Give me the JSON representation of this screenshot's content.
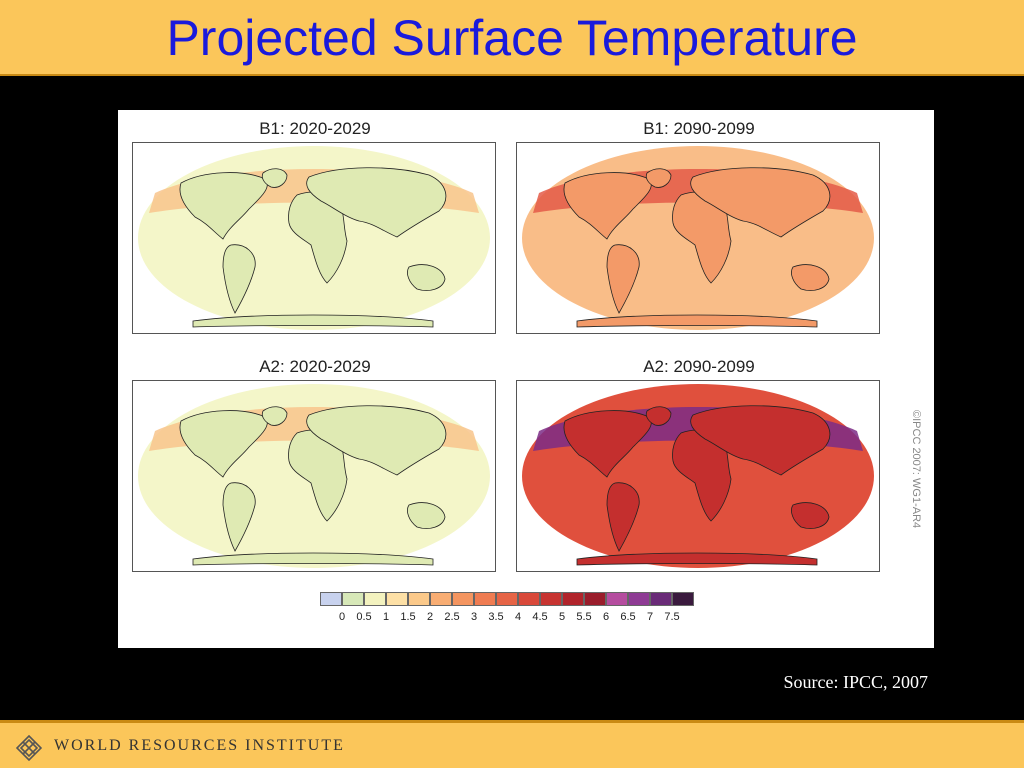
{
  "title": "Projected Surface Temperature",
  "panels": [
    {
      "label": "B1: 2020-2029",
      "scenario": "B1",
      "period": "2020-2029",
      "intensity": 0
    },
    {
      "label": "B1: 2090-2099",
      "scenario": "B1",
      "period": "2090-2099",
      "intensity": 1
    },
    {
      "label": "A2: 2020-2029",
      "scenario": "A2",
      "period": "2020-2029",
      "intensity": 0
    },
    {
      "label": "A2: 2090-2099",
      "scenario": "A2",
      "period": "2090-2099",
      "intensity": 2
    }
  ],
  "colorbar": {
    "ticks": [
      "0",
      "0.5",
      "1",
      "1.5",
      "2",
      "2.5",
      "3",
      "3.5",
      "4",
      "4.5",
      "5",
      "5.5",
      "6",
      "6.5",
      "7",
      "7.5"
    ],
    "colors": [
      "#c8d2ee",
      "#d7e8b8",
      "#f3f2bf",
      "#fde0a6",
      "#fbc98a",
      "#f8ad73",
      "#f49560",
      "#ef7c52",
      "#e66446",
      "#d9493a",
      "#c73431",
      "#b1242b",
      "#9a1d2b",
      "#b54d9f",
      "#8e3b94",
      "#6a2b78",
      "#3a1a3e"
    ]
  },
  "copyright": "©IPCC 2007: WG1-AR4",
  "source": "Source: IPCC, 2007",
  "footer": {
    "org": "WORLD RESOURCES INSTITUTE"
  },
  "map_palette": {
    "cool": [
      "#f4f6c9",
      "#dfeab3",
      "#f8c48c"
    ],
    "warm": [
      "#f9bd88",
      "#f39a68",
      "#e45a48"
    ],
    "hot": [
      "#e0503d",
      "#c42f2e",
      "#7b2b86"
    ]
  }
}
